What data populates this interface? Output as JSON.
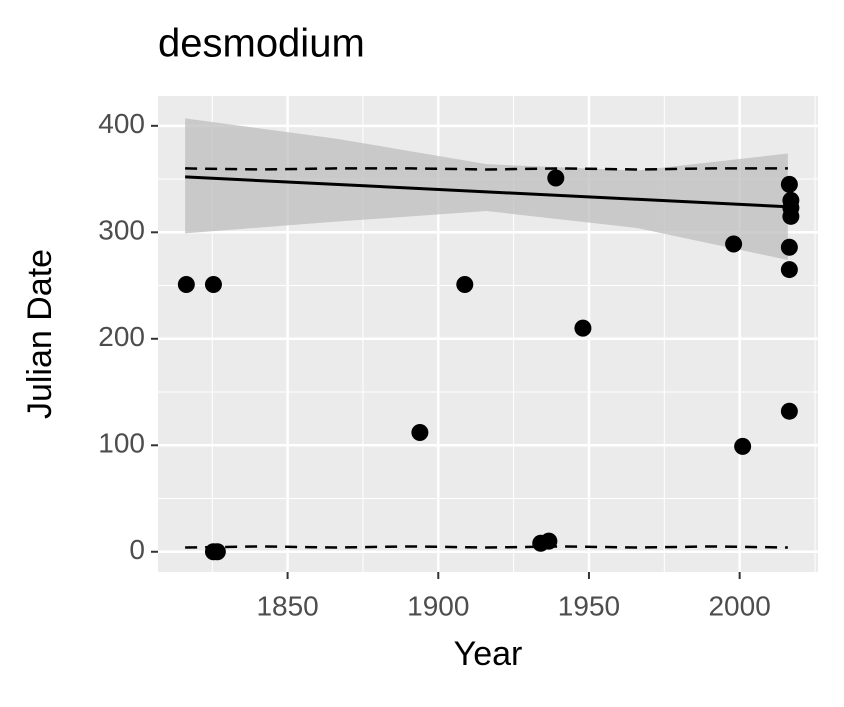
{
  "chart_data": {
    "type": "scatter",
    "title": "desmodium",
    "x_label": "Year",
    "y_label": "Julian Date",
    "xlim": [
      1807,
      2026
    ],
    "ylim": [
      -19,
      428
    ],
    "xticks": [
      1850,
      1900,
      1950,
      2000
    ],
    "yticks": [
      0,
      100,
      200,
      300,
      400
    ],
    "grid": true,
    "point_color": "#000000",
    "x": [
      1816.4,
      1825.4,
      1825.4,
      1826.7,
      1893.9,
      1908.8,
      1934,
      1936.7,
      1939,
      1948,
      1998,
      2001,
      2016.5,
      2017,
      2017,
      2017,
      2016.5,
      2016.5,
      2016.5
    ],
    "y": [
      251,
      251,
      0,
      0,
      112,
      251,
      8,
      10,
      351,
      210,
      289,
      99,
      345,
      330,
      323,
      315,
      286,
      265,
      132
    ],
    "fit": {
      "color": "#000000",
      "band_color": "#bdbdbd",
      "x": [
        1816,
        1866,
        1916,
        1966,
        2016
      ],
      "values": [
        352,
        345,
        338,
        331,
        324
      ],
      "lower": [
        299,
        310,
        320,
        304,
        274
      ],
      "upper": [
        407,
        388,
        364,
        358,
        374
      ]
    },
    "dashed": [
      {
        "x": [
          1816,
          1841,
          1866,
          1891,
          1916,
          1941,
          1966,
          1991,
          2016
        ],
        "values": [
          360,
          359,
          360,
          360,
          359,
          360,
          359,
          360,
          360
        ]
      },
      {
        "x": [
          1816,
          1841,
          1866,
          1891,
          1916,
          1941,
          1966,
          1991,
          2016
        ],
        "values": [
          4,
          5,
          4,
          5,
          4,
          5,
          4,
          5,
          4
        ]
      }
    ]
  }
}
